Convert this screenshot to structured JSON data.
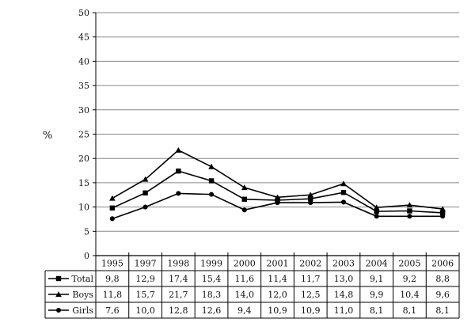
{
  "chart_data": {
    "type": "line",
    "ylabel": "%",
    "ylim": [
      0,
      50
    ],
    "yticks": [
      0,
      5,
      10,
      15,
      20,
      25,
      30,
      35,
      40,
      45,
      50
    ],
    "grid": true,
    "categories": [
      "1995",
      "1997",
      "1998",
      "1999",
      "2000",
      "2001",
      "2002",
      "2003",
      "2004",
      "2005",
      "2006"
    ],
    "series": [
      {
        "name": "Total",
        "marker": "square",
        "values": [
          9.8,
          12.9,
          17.4,
          15.4,
          11.6,
          11.4,
          11.7,
          13.0,
          9.1,
          9.2,
          8.8
        ],
        "labels": [
          "9,8",
          "12,9",
          "17,4",
          "15,4",
          "11,6",
          "11,4",
          "11,7",
          "13,0",
          "9,1",
          "9,2",
          "8,8"
        ]
      },
      {
        "name": "Boys",
        "marker": "triangle",
        "values": [
          11.8,
          15.7,
          21.7,
          18.3,
          14.0,
          12.0,
          12.5,
          14.8,
          9.9,
          10.4,
          9.6
        ],
        "labels": [
          "11,8",
          "15,7",
          "21,7",
          "18,3",
          "14,0",
          "12,0",
          "12,5",
          "14,8",
          "9,9",
          "10,4",
          "9,6"
        ]
      },
      {
        "name": "Girls",
        "marker": "circle",
        "values": [
          7.6,
          10.0,
          12.8,
          12.6,
          9.4,
          10.9,
          10.9,
          11.0,
          8.1,
          8.1,
          8.1
        ],
        "labels": [
          "7,6",
          "10,0",
          "12,8",
          "12,6",
          "9,4",
          "10,9",
          "10,9",
          "11,0",
          "8,1",
          "8,1",
          "8,1"
        ]
      }
    ],
    "line_color": "#000000",
    "grid_color": "#888888"
  }
}
